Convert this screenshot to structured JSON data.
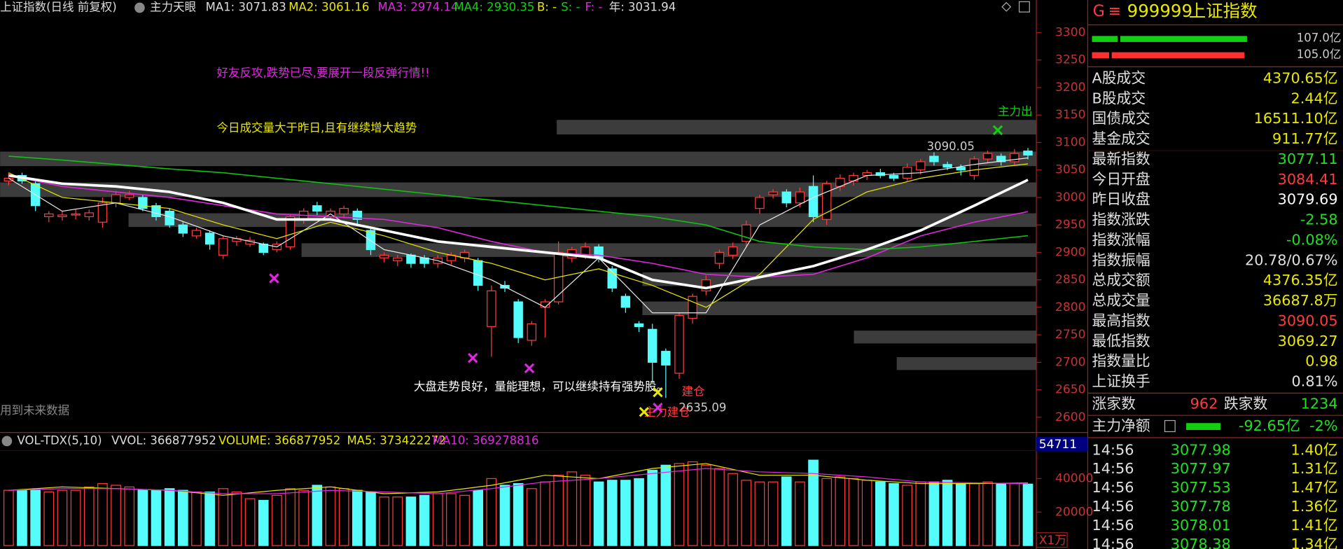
{
  "chart_data": [
    {
      "type": "candlestick",
      "title": "上证指数(日线 前复权)",
      "indicator": "主力天眼",
      "up_color": "#ff3c3c",
      "down_color": "#54fcfc",
      "open": [
        3030,
        3040,
        3025,
        2965,
        2965,
        2968,
        2965,
        2955,
        2990,
        3000,
        3000,
        2985,
        2975,
        2950,
        2930,
        2935,
        2895,
        2920,
        2915,
        2915,
        2905,
        2910,
        2960,
        2985,
        2965,
        2970,
        2975,
        2940,
        2890,
        2885,
        2895,
        2890,
        2880,
        2885,
        2890,
        2885,
        2765,
        2840,
        2810,
        2740,
        2800,
        2810,
        2890,
        2895,
        2910,
        2870,
        2820,
        2770,
        2760,
        2720,
        2680,
        2780,
        2830,
        2880,
        2895,
        2920,
        2980,
        3005,
        3010,
        2990,
        3020,
        2960,
        3020,
        3030,
        3040,
        3045,
        3040,
        3035,
        3050,
        3075,
        3060,
        3055,
        3040,
        3070,
        3075,
        3065,
        3084.41
      ],
      "high": [
        3045,
        3045,
        3030,
        2975,
        2975,
        2978,
        2978,
        3000,
        3012,
        3012,
        3005,
        2990,
        2980,
        2955,
        2945,
        2940,
        2930,
        2930,
        2928,
        2918,
        2920,
        2970,
        2980,
        2992,
        2980,
        2985,
        2980,
        2945,
        2900,
        2895,
        2898,
        2895,
        2895,
        2900,
        2905,
        2890,
        2840,
        2848,
        2815,
        2775,
        2815,
        2920,
        2910,
        2918,
        2915,
        2875,
        2825,
        2775,
        2770,
        2725,
        2790,
        2825,
        2858,
        2905,
        2918,
        2958,
        3005,
        3015,
        3015,
        3018,
        3040,
        3030,
        3042,
        3045,
        3050,
        3052,
        3045,
        3062,
        3070,
        3082,
        3065,
        3060,
        3075,
        3085,
        3080,
        3088,
        3090.05
      ],
      "low": [
        3022,
        3025,
        2975,
        2955,
        2958,
        2960,
        2958,
        2945,
        2982,
        2995,
        2975,
        2958,
        2945,
        2928,
        2925,
        2905,
        2888,
        2912,
        2910,
        2895,
        2900,
        2905,
        2952,
        2968,
        2958,
        2962,
        2952,
        2895,
        2882,
        2875,
        2872,
        2872,
        2872,
        2878,
        2882,
        2830,
        2710,
        2828,
        2735,
        2730,
        2745,
        2805,
        2882,
        2888,
        2882,
        2828,
        2790,
        2755,
        2660,
        2635.09,
        2670,
        2770,
        2822,
        2870,
        2888,
        2910,
        2970,
        2998,
        2982,
        2982,
        2955,
        2950,
        3012,
        3022,
        3032,
        3035,
        3030,
        3030,
        3042,
        3058,
        3050,
        3040,
        3032,
        3062,
        3058,
        3060,
        3069.27
      ],
      "close": [
        3035,
        3030,
        2985,
        2970,
        2968,
        2970,
        2972,
        2990,
        3005,
        3005,
        2980,
        2965,
        2950,
        2935,
        2940,
        2915,
        2925,
        2925,
        2922,
        2900,
        2915,
        2965,
        2975,
        2975,
        2975,
        2980,
        2960,
        2905,
        2895,
        2890,
        2880,
        2880,
        2890,
        2895,
        2900,
        2840,
        2830,
        2835,
        2745,
        2770,
        2810,
        2900,
        2905,
        2910,
        2890,
        2835,
        2800,
        2765,
        2700,
        2695,
        2785,
        2820,
        2850,
        2900,
        2910,
        2950,
        3000,
        3010,
        2990,
        3010,
        2965,
        3025,
        3035,
        3040,
        3045,
        3040,
        3035,
        3055,
        3065,
        3065,
        3055,
        3050,
        3070,
        3080,
        3065,
        3080,
        3077.11
      ],
      "series": [
        {
          "label": "MA1: 3071.83",
          "color": "#e8e8e8",
          "width": 1,
          "x": [
            0,
            4,
            8,
            12,
            16,
            20,
            24,
            28,
            32,
            36,
            40,
            44,
            48,
            52,
            56,
            60,
            64,
            68,
            72,
            76
          ],
          "values": [
            3035,
            2975,
            2990,
            2965,
            2930,
            2910,
            2970,
            2905,
            2885,
            2850,
            2800,
            2890,
            2790,
            2790,
            2950,
            3000,
            3040,
            3045,
            3060,
            3071.83
          ]
        },
        {
          "label": "MA2: 3061.16",
          "color": "#e8e800",
          "width": 1,
          "x": [
            0,
            4,
            8,
            12,
            16,
            20,
            24,
            28,
            32,
            36,
            40,
            44,
            48,
            52,
            56,
            60,
            64,
            68,
            72,
            76
          ],
          "values": [
            3045,
            3000,
            2990,
            2980,
            2950,
            2925,
            2955,
            2930,
            2900,
            2880,
            2850,
            2870,
            2840,
            2800,
            2860,
            2960,
            3010,
            3035,
            3050,
            3061.16
          ]
        },
        {
          "label": "MA3: 2974.14",
          "color": "#e028e0",
          "width": 1.3,
          "x": [
            0,
            4,
            8,
            12,
            16,
            20,
            24,
            28,
            32,
            36,
            40,
            44,
            48,
            52,
            56,
            60,
            64,
            68,
            72,
            76
          ],
          "values": [
            3040,
            3020,
            3010,
            3000,
            2985,
            2970,
            2965,
            2960,
            2945,
            2920,
            2900,
            2895,
            2880,
            2860,
            2855,
            2860,
            2890,
            2930,
            2955,
            2974.14
          ]
        },
        {
          "label": "MA4: 2930.35",
          "color": "#10c010",
          "width": 1.3,
          "x": [
            0,
            4,
            8,
            12,
            16,
            20,
            24,
            28,
            32,
            36,
            40,
            44,
            48,
            52,
            56,
            60,
            64,
            68,
            72,
            76
          ],
          "values": [
            3075,
            3068,
            3060,
            3052,
            3045,
            3035,
            3025,
            3015,
            3005,
            2995,
            2985,
            2975,
            2965,
            2950,
            2920,
            2910,
            2905,
            2910,
            2920,
            2930.35
          ]
        },
        {
          "label": "年: 3031.94",
          "color": "#ffffff",
          "width": 3,
          "x": [
            0,
            4,
            8,
            12,
            16,
            20,
            24,
            28,
            32,
            36,
            40,
            44,
            48,
            52,
            56,
            60,
            64,
            68,
            72,
            76
          ],
          "values": [
            3040,
            3025,
            3020,
            3010,
            2990,
            2960,
            2960,
            2940,
            2920,
            2910,
            2900,
            2890,
            2850,
            2835,
            2855,
            2875,
            2905,
            2940,
            2985,
            3031.94
          ]
        }
      ],
      "extras": [
        "B: -",
        "S: -",
        "F: -"
      ],
      "ylim": [
        2580,
        3325
      ],
      "yticks": [
        2600,
        2650,
        2700,
        2750,
        2800,
        2850,
        2900,
        2950,
        3000,
        3050,
        3100,
        3150,
        3200,
        3250,
        3300
      ],
      "annotations": [
        "好友反攻,跌势已尽,要展开一段反弹行情!!",
        "今日成交量大于昨日,且有继续增大趋势",
        "大盘走势良好，量能理想，可以继续持有强势股。",
        "用到未来数据",
        "主力出",
        "主力建仓",
        "建仓"
      ]
    },
    {
      "type": "bar",
      "title": "VOL-TDX(5,10)",
      "extra": "VVOL: 366877952",
      "label": "VOLUME: 366877952",
      "values": [
        33000,
        33000,
        33000,
        32000,
        33000,
        33000,
        35000,
        37000,
        36000,
        35000,
        33000,
        33000,
        34000,
        33000,
        32000,
        32000,
        34000,
        32000,
        28000,
        27000,
        30000,
        34000,
        33000,
        36000,
        35000,
        34000,
        33000,
        32000,
        29000,
        29000,
        29000,
        30000,
        31000,
        31000,
        30000,
        33000,
        40000,
        36000,
        37000,
        34000,
        38000,
        42000,
        44000,
        42000,
        38000,
        39000,
        39000,
        40000,
        45000,
        48000,
        49000,
        50000,
        48000,
        46000,
        43000,
        39000,
        38000,
        38000,
        41000,
        38000,
        51000,
        40000,
        41000,
        40000,
        39000,
        38000,
        37000,
        36000,
        38000,
        38000,
        39000,
        37000,
        37000,
        38000,
        37000,
        37000,
        36700
      ],
      "series": [
        {
          "label": "MA5: 373422272",
          "color": "#e8e800",
          "x": [
            0,
            4,
            8,
            12,
            16,
            20,
            24,
            28,
            32,
            36,
            40,
            44,
            48,
            52,
            56,
            60,
            64,
            68,
            72,
            76
          ],
          "values": [
            33000,
            35000,
            34000,
            33000,
            30000,
            33000,
            35000,
            31000,
            32000,
            36000,
            42000,
            40000,
            46000,
            49000,
            42000,
            42000,
            39000,
            37000,
            37000,
            37342
          ]
        },
        {
          "label": "MA10: 369278816",
          "color": "#e028e0",
          "x": [
            0,
            4,
            8,
            12,
            16,
            20,
            24,
            28,
            32,
            36,
            40,
            44,
            48,
            52,
            56,
            60,
            64,
            68,
            72,
            76
          ],
          "values": [
            33000,
            34000,
            34000,
            33000,
            31000,
            31000,
            33000,
            32000,
            31000,
            34000,
            38000,
            40000,
            43000,
            46000,
            44000,
            43000,
            41000,
            38000,
            37500,
            36928
          ]
        }
      ],
      "ylim": [
        0,
        54711
      ],
      "yticks": [
        20000,
        40000
      ],
      "unit": "X1万"
    }
  ],
  "quote": {
    "market": "G",
    "menu": "≡",
    "code": "999999",
    "name": "上证指数",
    "flow": [
      "107.0亿",
      "105.0亿"
    ],
    "rows": [
      {
        "label": "A股成交",
        "value": "4370.65亿",
        "color": "#e8e800"
      },
      {
        "label": "B股成交",
        "value": "2.44亿",
        "color": "#e8e800"
      },
      {
        "label": "国债成交",
        "value": "16511.10亿",
        "color": "#e8e800"
      },
      {
        "label": "基金成交",
        "value": "911.77亿",
        "color": "#e8e800"
      },
      {
        "label": "最新指数",
        "value": "3077.11",
        "color": "#20e020"
      },
      {
        "label": "今日开盘",
        "value": "3084.41",
        "color": "#ff3c3c"
      },
      {
        "label": "昨日收盘",
        "value": "3079.69",
        "color": "#ffffff"
      },
      {
        "label": "指数涨跌",
        "value": "-2.58",
        "color": "#20e020"
      },
      {
        "label": "指数涨幅",
        "value": "-0.08%",
        "color": "#20e020"
      },
      {
        "label": "指数振幅",
        "value": "20.78/0.67%",
        "color": "#e0e0e0"
      },
      {
        "label": "总成交额",
        "value": "4376.35亿",
        "color": "#e8e800"
      },
      {
        "label": "总成交量",
        "value": "36687.8万",
        "color": "#e8e800"
      },
      {
        "label": "最高指数",
        "value": "3090.05",
        "color": "#ff3c3c"
      },
      {
        "label": "最低指数",
        "value": "3069.27",
        "color": "#e8e800"
      },
      {
        "label": "指数量比",
        "value": "0.98",
        "color": "#e8e800"
      },
      {
        "label": "上证换手",
        "value": "0.81%",
        "color": "#e0e0e0"
      }
    ],
    "breadth": {
      "up_label": "涨家数",
      "up": 962,
      "down_label": "跌家数",
      "down": 1234
    },
    "net": {
      "label": "主力净额",
      "value": "-92.65亿",
      "pct": "-2%"
    },
    "trades": [
      [
        "14:56",
        "3077.98",
        "1.40亿"
      ],
      [
        "14:56",
        "3077.97",
        "1.31亿"
      ],
      [
        "14:56",
        "3077.53",
        "1.47亿"
      ],
      [
        "14:56",
        "3077.78",
        "1.36亿"
      ],
      [
        "14:56",
        "3078.01",
        "1.41亿"
      ],
      [
        "14:56",
        "3078.38",
        "1.34亿"
      ]
    ]
  }
}
